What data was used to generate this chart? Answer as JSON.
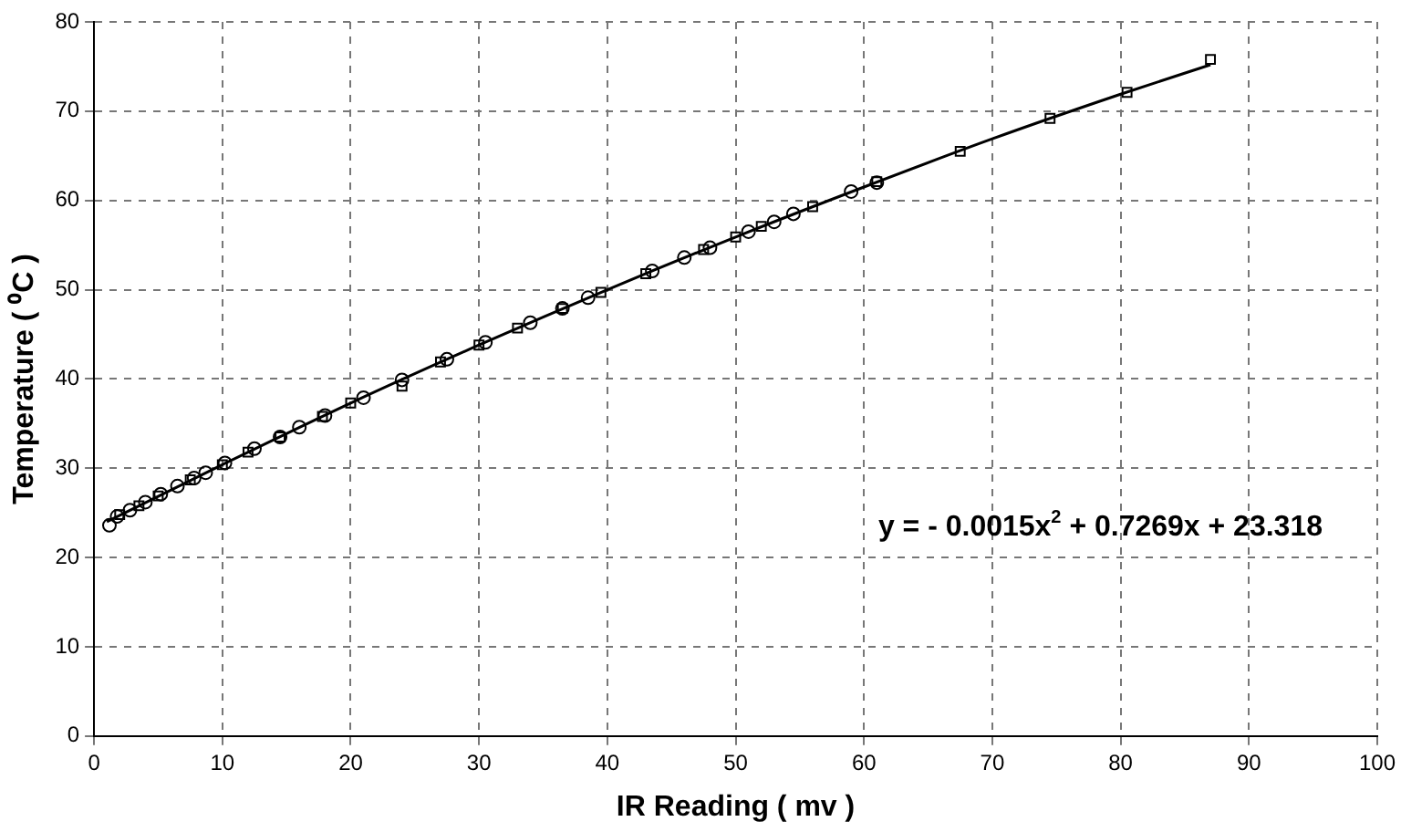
{
  "chart_data": {
    "type": "scatter",
    "xlabel": "IR Reading ( mv )",
    "ylabel": "Temperature ( ⁰C )",
    "xlim": [
      0,
      100
    ],
    "xticks": [
      0,
      10,
      20,
      30,
      40,
      50,
      60,
      70,
      80,
      90,
      100
    ],
    "ylim": [
      0,
      80
    ],
    "yticks": [
      0,
      10,
      20,
      30,
      40,
      50,
      60,
      70,
      80
    ],
    "grid": true,
    "legend": false,
    "annotations": [
      "y = - 0.0015x$^{2}$ + 0.7269x + 23.318"
    ],
    "series": [
      {
        "color": "#000000",
        "marker": "circle",
        "x": [
          1.2,
          1.8,
          2.8,
          4,
          5.2,
          6.5,
          7.8,
          8.7,
          10.2,
          12.5,
          14.5,
          16,
          18,
          21,
          24,
          27.5,
          30.5,
          34,
          36.5,
          38.5,
          43.5,
          46,
          48,
          51,
          53,
          54.5,
          59,
          61
        ],
        "values": [
          23.6,
          24.6,
          25.3,
          26.2,
          27.1,
          28.0,
          28.9,
          29.5,
          30.6,
          32.2,
          33.5,
          34.6,
          35.9,
          37.9,
          39.9,
          42.2,
          44.1,
          46.3,
          47.9,
          49.1,
          52.1,
          53.6,
          54.7,
          56.5,
          57.6,
          58.5,
          61.0,
          62.0
        ]
      },
      {
        "color": "#000000",
        "marker": "square",
        "x": [
          2,
          3.5,
          5,
          7.5,
          10,
          12,
          14.5,
          17.8,
          20,
          24,
          27,
          30,
          33,
          36.5,
          39.5,
          43,
          47.5,
          50,
          52,
          56,
          61,
          67.5,
          74.5,
          80.5,
          87
        ],
        "values": [
          24.8,
          25.8,
          26.9,
          28.7,
          30.4,
          31.8,
          33.5,
          35.8,
          37.3,
          39.2,
          41.9,
          43.8,
          45.7,
          47.9,
          49.7,
          51.8,
          54.5,
          55.9,
          57.1,
          59.3,
          62.1,
          65.5,
          69.2,
          72.1,
          75.8
        ]
      },
      {
        "type": "line",
        "color": "#000000",
        "marker": "none",
        "line_style": "solid",
        "x": [
          1,
          10,
          20,
          30,
          40,
          50,
          60,
          70,
          80,
          87
        ],
        "values": [
          24.0,
          30.4,
          37.3,
          43.8,
          50.0,
          55.9,
          61.5,
          66.9,
          71.9,
          75.2
        ]
      }
    ]
  }
}
